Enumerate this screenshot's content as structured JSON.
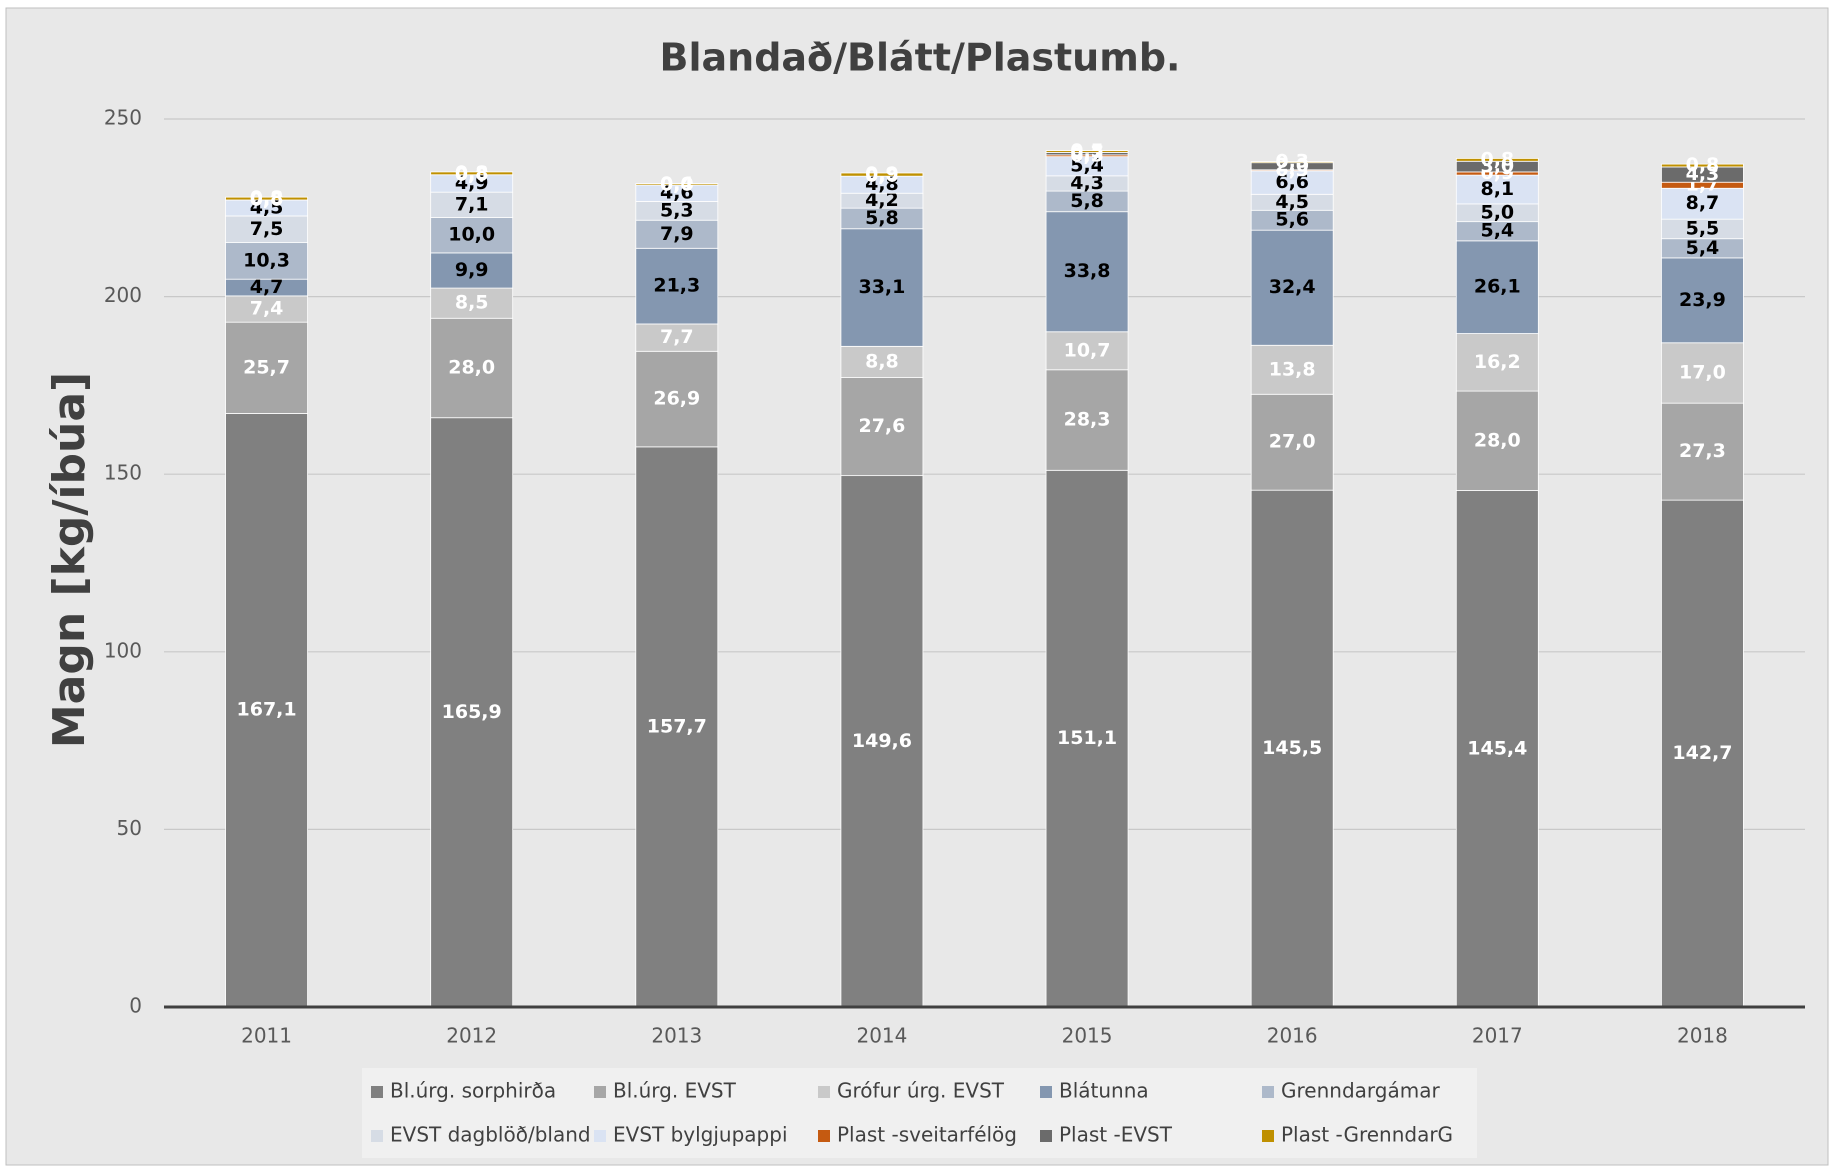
{
  "chart_data": {
    "type": "stacked_bar",
    "title": "Blandað/Blátt/Plastumb.",
    "y_label": "Magn [kg/íbúa]",
    "categories": [
      "2011",
      "2012",
      "2013",
      "2014",
      "2015",
      "2016",
      "2017",
      "2018"
    ],
    "ylim": [
      0,
      250
    ],
    "yticks": [
      0,
      50,
      100,
      150,
      200,
      250
    ],
    "grid": true,
    "legend": "bottom",
    "series": [
      {
        "name": "Bl.úrg. sorphirða",
        "color": "#808080",
        "values": [
          167.1,
          165.9,
          157.7,
          149.6,
          151.1,
          145.5,
          145.4,
          142.7
        ],
        "value_labels": [
          "167,1",
          "165,9",
          "157,7",
          "149,6",
          "151,1",
          "145,5",
          "145,4",
          "142,7"
        ]
      },
      {
        "name": "Bl.úrg. EVST",
        "color": "#a6a6a6",
        "values": [
          25.7,
          28.0,
          26.9,
          27.6,
          28.3,
          27.0,
          28.0,
          27.3
        ],
        "value_labels": [
          "25,7",
          "28,0",
          "26,9",
          "27,6",
          "28,3",
          "27,0",
          "28,0",
          "27,3"
        ]
      },
      {
        "name": "Grófur úrg. EVST",
        "color": "#c9c9c9",
        "values": [
          7.4,
          8.5,
          7.7,
          8.8,
          10.7,
          13.8,
          16.2,
          17.0
        ],
        "value_labels": [
          "7,4",
          "8,5",
          "7,7",
          "8,8",
          "10,7",
          "13,8",
          "16,2",
          "17,0"
        ]
      },
      {
        "name": "Blátunna",
        "color": "#8497b0",
        "values": [
          4.7,
          9.9,
          21.3,
          33.1,
          33.8,
          32.4,
          26.1,
          23.9
        ],
        "value_labels": [
          "4,7",
          "9,9",
          "21,3",
          "33,1",
          "33,8",
          "32,4",
          "26,1",
          "23,9"
        ]
      },
      {
        "name": "Grenndargámar",
        "color": "#adb9ca",
        "values": [
          10.3,
          10.0,
          7.9,
          5.8,
          5.8,
          5.6,
          5.4,
          5.4
        ],
        "value_labels": [
          "10,3",
          "10,0",
          "7,9",
          "5,8",
          "5,8",
          "5,6",
          "5,4",
          "5,4"
        ]
      },
      {
        "name": "EVST dagblöð/bland",
        "color": "#d6dce5",
        "values": [
          7.5,
          7.1,
          5.3,
          4.2,
          4.3,
          4.5,
          5.0,
          5.5
        ],
        "value_labels": [
          "7,5",
          "7,1",
          "5,3",
          "4,2",
          "4,3",
          "4,5",
          "5,0",
          "5,5"
        ]
      },
      {
        "name": "EVST bylgjupappi",
        "color": "#dae3f3",
        "values": [
          4.5,
          4.9,
          4.6,
          4.8,
          5.4,
          6.6,
          8.1,
          8.7
        ],
        "value_labels": [
          "4,5",
          "4,9",
          "4,6",
          "4,8",
          "5,4",
          "6,6",
          "8,1",
          "8,7"
        ]
      },
      {
        "name": "Plast -sveitarfélög",
        "color": "#c55a11",
        "values": [
          0.0,
          0.0,
          0.0,
          0.0,
          0.5,
          0.3,
          0.9,
          1.7
        ],
        "value_labels": [
          "0,0",
          "0,0",
          "0,0",
          "0,0",
          "0,5",
          "0,3",
          "0,9",
          "1,7"
        ]
      },
      {
        "name": "Plast -EVST",
        "color": "#6b6b6b",
        "values": [
          0.0,
          0.0,
          0.0,
          0.0,
          0.7,
          2.0,
          3.0,
          4.3
        ],
        "value_labels": [
          "0,0",
          "0,0",
          "0,0",
          "0,0",
          "0,7",
          "2,0",
          "3,0",
          "4,3"
        ]
      },
      {
        "name": "Plast -GrenndarG",
        "color": "#bf9000",
        "values": [
          0.8,
          0.8,
          0.4,
          0.9,
          0.5,
          0.3,
          0.8,
          0.8
        ],
        "value_labels": [
          "0,8",
          "0,8",
          "0,4",
          "0,9",
          "0,5",
          "0,3",
          "0,8",
          "0,8"
        ]
      }
    ]
  }
}
